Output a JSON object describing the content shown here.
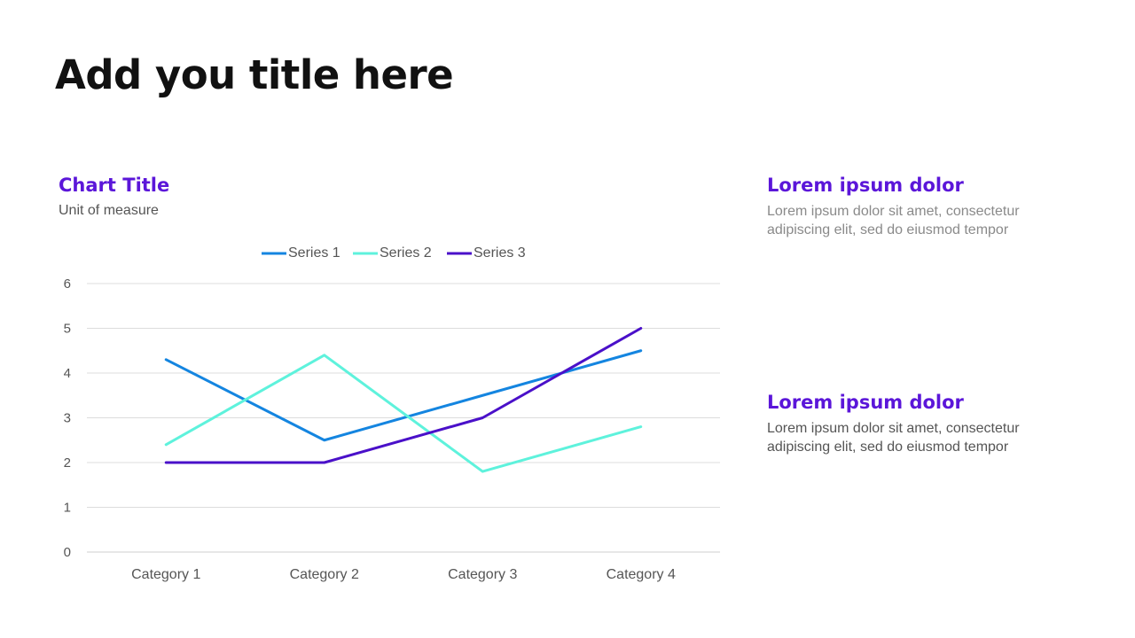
{
  "slide": {
    "title": "Add you title here"
  },
  "panels": [
    {
      "heading": "Lorem ipsum dolor",
      "body": "Lorem ipsum dolor sit amet, consectetur adipiscing elit, sed do eiusmod tempor"
    },
    {
      "heading": "Lorem ipsum dolor",
      "body": "Lorem ipsum dolor sit amet, consectetur adipiscing elit, sed do eiusmod tempor"
    }
  ],
  "chart_data": {
    "type": "line",
    "title": "Chart Title",
    "subtitle": "Unit of measure",
    "xlabel": "",
    "ylabel": "",
    "categories": [
      "Category 1",
      "Category 2",
      "Category 3",
      "Category 4"
    ],
    "ylim": [
      0,
      6
    ],
    "yticks": [
      0,
      1,
      2,
      3,
      4,
      5,
      6
    ],
    "grid": true,
    "legend_position": "top",
    "series": [
      {
        "name": "Series 1",
        "color": "#1485e0",
        "values": [
          4.3,
          2.5,
          3.5,
          4.5
        ]
      },
      {
        "name": "Series 2",
        "color": "#5ef2dc",
        "values": [
          2.4,
          4.4,
          1.8,
          2.8
        ]
      },
      {
        "name": "Series 3",
        "color": "#4a10c9",
        "values": [
          2.0,
          2.0,
          3.0,
          5.0
        ]
      }
    ]
  }
}
